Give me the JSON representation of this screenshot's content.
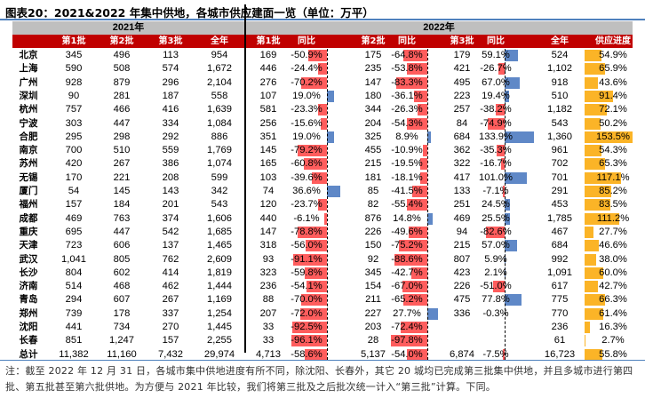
{
  "title": "图表20：2021&2022 年集中供地，各城市供应建面一览（单位：万平）",
  "year_headers": [
    "2021年",
    "2022年"
  ],
  "columns": [
    "第1批",
    "第2批",
    "第3批",
    "全年",
    "第1批",
    "同比",
    "第2批",
    "同比",
    "第3批",
    "同比",
    "全年",
    "供应进度"
  ],
  "colors": {
    "header_red": "#c00000",
    "year_gray": "#bfbfbf",
    "negative_bar": "#ff5d5d",
    "positive_bar": "#5f88c7",
    "progress_bar": "#fbb427",
    "title_line": "#4f81bd"
  },
  "rows": [
    [
      "北京",
      "345",
      "496",
      "113",
      "954",
      "169",
      "-50.9%",
      "175",
      "-64.8%",
      "179",
      "59.1%",
      "524",
      "54.9%"
    ],
    [
      "上海",
      "590",
      "508",
      "574",
      "1,672",
      "446",
      "-24.4%",
      "235",
      "-53.8%",
      "421",
      "-26.7%",
      "1,102",
      "65.9%"
    ],
    [
      "广州",
      "928",
      "879",
      "296",
      "2,104",
      "276",
      "-70.2%",
      "147",
      "-83.3%",
      "495",
      "67.0%",
      "918",
      "43.6%"
    ],
    [
      "深圳",
      "90",
      "281",
      "187",
      "558",
      "107",
      "19.0%",
      "180",
      "-36.1%",
      "223",
      "19.4%",
      "510",
      "91.4%"
    ],
    [
      "杭州",
      "757",
      "466",
      "416",
      "1,639",
      "581",
      "-23.3%",
      "344",
      "-26.3%",
      "257",
      "-38.2%",
      "1,182",
      "72.1%"
    ],
    [
      "宁波",
      "303",
      "447",
      "334",
      "1,084",
      "256",
      "-15.6%",
      "204",
      "-54.3%",
      "84",
      "-74.9%",
      "543",
      "50.2%"
    ],
    [
      "合肥",
      "295",
      "298",
      "292",
      "886",
      "351",
      "19.0%",
      "325",
      "8.9%",
      "684",
      "133.9%",
      "1,360",
      "153.5%"
    ],
    [
      "南京",
      "700",
      "510",
      "559",
      "1,769",
      "145",
      "-79.2%",
      "455",
      "-10.9%",
      "362",
      "-35.3%",
      "961",
      "54.3%"
    ],
    [
      "苏州",
      "420",
      "267",
      "386",
      "1,074",
      "165",
      "-60.8%",
      "215",
      "-19.5%",
      "322",
      "-16.7%",
      "702",
      "65.3%"
    ],
    [
      "无锡",
      "170",
      "221",
      "208",
      "599",
      "103",
      "-39.6%",
      "181",
      "-18.1%",
      "417",
      "101.0%",
      "701",
      "117.1%"
    ],
    [
      "厦门",
      "54",
      "145",
      "143",
      "342",
      "74",
      "36.6%",
      "85",
      "-41.5%",
      "133",
      "-7.1%",
      "291",
      "85.2%"
    ],
    [
      "福州",
      "157",
      "184",
      "201",
      "543",
      "120",
      "-23.7%",
      "82",
      "-55.4%",
      "251",
      "24.5%",
      "453",
      "83.5%"
    ],
    [
      "成都",
      "469",
      "763",
      "374",
      "1,606",
      "440",
      "-6.1%",
      "876",
      "14.8%",
      "469",
      "25.5%",
      "1,785",
      "111.2%"
    ],
    [
      "重庆",
      "695",
      "447",
      "542",
      "1,685",
      "147",
      "-78.8%",
      "226",
      "-49.6%",
      "94",
      "-82.6%",
      "467",
      "27.7%"
    ],
    [
      "天津",
      "723",
      "606",
      "137",
      "1,465",
      "318",
      "-56.0%",
      "150",
      "-75.2%",
      "215",
      "57.0%",
      "684",
      "46.6%"
    ],
    [
      "武汉",
      "1,041",
      "805",
      "762",
      "2,609",
      "93",
      "-91.1%",
      "92",
      "-88.6%",
      "807",
      "5.9%",
      "992",
      "38.0%"
    ],
    [
      "长沙",
      "804",
      "602",
      "414",
      "1,819",
      "323",
      "-59.8%",
      "345",
      "-42.7%",
      "423",
      "2.1%",
      "1,091",
      "60.0%"
    ],
    [
      "济南",
      "514",
      "468",
      "462",
      "1,444",
      "236",
      "-54.1%",
      "154",
      "-67.0%",
      "226",
      "-51.0%",
      "617",
      "42.7%"
    ],
    [
      "青岛",
      "294",
      "607",
      "267",
      "1,169",
      "88",
      "-70.0%",
      "211",
      "-65.2%",
      "475",
      "77.8%",
      "775",
      "66.3%"
    ],
    [
      "郑州",
      "739",
      "178",
      "337",
      "1,254",
      "207",
      "-72.0%",
      "227",
      "27.7%",
      "336",
      "-0.3%",
      "770",
      "61.4%"
    ],
    [
      "沈阳",
      "441",
      "734",
      "270",
      "1,445",
      "33",
      "-92.5%",
      "203",
      "-72.4%",
      "",
      "",
      "236",
      "16.3%"
    ],
    [
      "长春",
      "851",
      "1,247",
      "157",
      "2,255",
      "33",
      "-96.1%",
      "28",
      "-97.8%",
      "",
      "",
      "61",
      "2.7%"
    ],
    [
      "总计",
      "11,382",
      "11,160",
      "7,432",
      "29,974",
      "4,713",
      "-58.6%",
      "5,137",
      "-54.0%",
      "6,874",
      "-7.5%",
      "16,723",
      "55.8%"
    ]
  ],
  "note": "注：截至 2022 年 12 月 31 日，各城市集中供地进度有所不同，除沈阳、长春外，其它 20 城均已完成第三批集中供地，并且多城市进行第四批、第五批甚至第六批供地。为方便与 2021 年比较，我们将第三批及之后批次统一计入“第三批”计算。下同。"
}
